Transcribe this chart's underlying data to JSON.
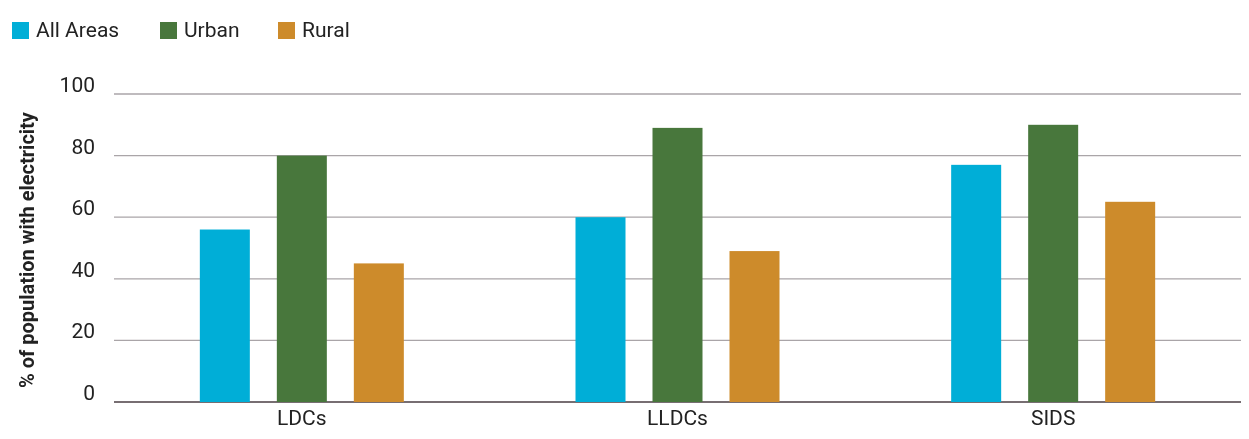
{
  "chart_data": {
    "type": "bar",
    "ylabel": "% of population with electricity",
    "categories": [
      "LDCs",
      "LLDCs",
      "SIDS"
    ],
    "series": [
      {
        "name": "All Areas",
        "color": "#00aed7",
        "values": [
          56,
          60,
          77
        ]
      },
      {
        "name": "Urban",
        "color": "#48773c",
        "values": [
          80,
          89,
          90
        ]
      },
      {
        "name": "Rural",
        "color": "#cd8b2b",
        "values": [
          45,
          49,
          65
        ]
      }
    ],
    "ylim": [
      0,
      100
    ],
    "yticks": [
      0,
      20,
      40,
      60,
      80,
      100
    ],
    "grid": "y",
    "legend": "top left"
  }
}
